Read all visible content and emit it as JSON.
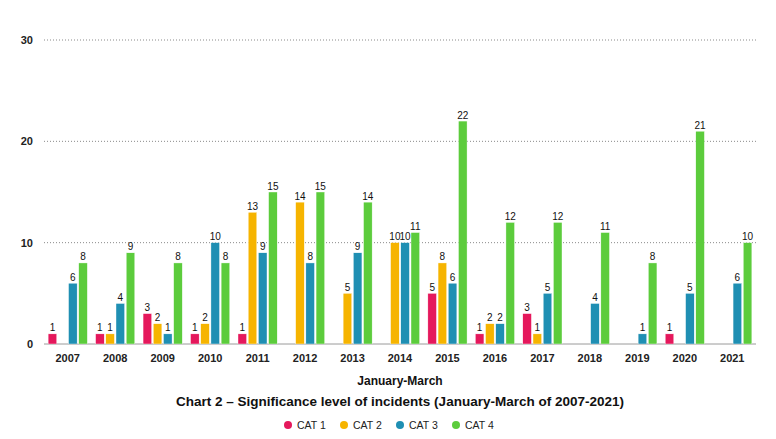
{
  "chart_data": {
    "type": "bar",
    "title": "Chart 2 – Significance level of incidents (January-March of 2007-2021)",
    "x_label": "January-March",
    "categories": [
      "2007",
      "2008",
      "2009",
      "2010",
      "2011",
      "2012",
      "2013",
      "2014",
      "2015",
      "2016",
      "2017",
      "2018",
      "2019",
      "2020",
      "2021"
    ],
    "series": [
      {
        "name": "CAT 1",
        "color": "#e5185c",
        "values": [
          1,
          1,
          3,
          1,
          1,
          null,
          null,
          null,
          5,
          1,
          3,
          null,
          null,
          1,
          null
        ]
      },
      {
        "name": "CAT 2",
        "color": "#f6b400",
        "values": [
          null,
          1,
          2,
          2,
          13,
          14,
          5,
          10,
          8,
          2,
          1,
          null,
          null,
          null,
          null
        ]
      },
      {
        "name": "CAT 3",
        "color": "#1f8fb3",
        "values": [
          6,
          4,
          1,
          10,
          9,
          8,
          9,
          10,
          6,
          2,
          5,
          4,
          1,
          5,
          6
        ]
      },
      {
        "name": "CAT 4",
        "color": "#5ccc3c",
        "values": [
          8,
          9,
          8,
          8,
          15,
          15,
          14,
          11,
          22,
          12,
          12,
          11,
          8,
          21,
          10
        ]
      }
    ],
    "ylim": [
      0,
      30
    ],
    "yticks": [
      0,
      10,
      20,
      30
    ],
    "grid": true,
    "data_labels": true,
    "legend": "bottom"
  }
}
